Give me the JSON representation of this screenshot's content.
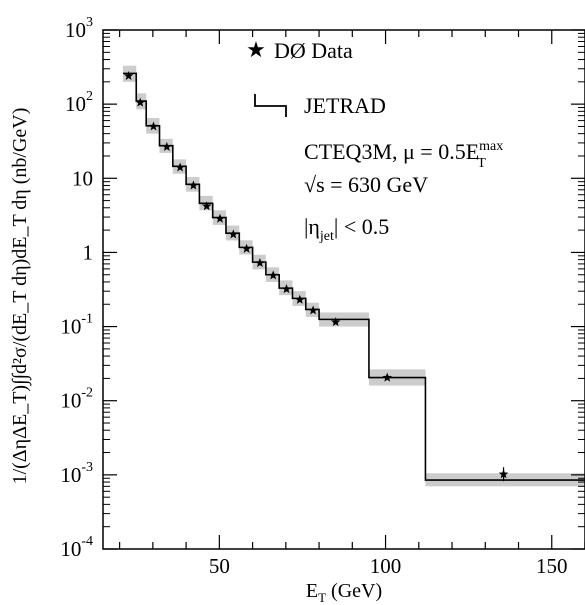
{
  "chart_data": {
    "type": "step-line-with-points",
    "xlabel": "E_T (GeV)",
    "ylabel": "1/(ΔηΔE_T)∫∫d²σ/(dE_T dη)dE_T dη (nb/GeV)",
    "xlim": [
      15,
      160
    ],
    "ylim": [
      0.0001,
      1000
    ],
    "yscale": "log",
    "xticks": [
      50,
      100,
      150
    ],
    "yticks": [
      {
        "value": 1000,
        "label": "10",
        "exp": "3"
      },
      {
        "value": 100,
        "label": "10",
        "exp": "2"
      },
      {
        "value": 10,
        "label": "10",
        "exp": ""
      },
      {
        "value": 1,
        "label": "1",
        "exp": ""
      },
      {
        "value": 0.1,
        "label": "10",
        "exp": "-1"
      },
      {
        "value": 0.01,
        "label": "10",
        "exp": "-2"
      },
      {
        "value": 0.001,
        "label": "10",
        "exp": "-3"
      },
      {
        "value": 0.0001,
        "label": "10",
        "exp": "-4"
      }
    ],
    "data_points": {
      "name": "DØ Data",
      "marker": "star",
      "x": [
        22.7,
        26.2,
        30.2,
        34.2,
        38.2,
        42.2,
        46.2,
        50.2,
        54.2,
        58.2,
        62.2,
        66.2,
        70.2,
        74.2,
        78.2,
        85.0,
        100.5,
        135.5
      ],
      "y": [
        240,
        105,
        50,
        26.5,
        14.0,
        8.0,
        4.2,
        2.85,
        1.75,
        1.12,
        0.72,
        0.49,
        0.32,
        0.23,
        0.165,
        0.115,
        0.0205,
        0.00102
      ]
    },
    "model": {
      "name": "JETRAD",
      "edges": [
        21,
        25,
        28,
        32,
        36,
        40,
        44,
        48,
        52,
        56,
        60,
        64,
        68,
        72,
        76,
        80,
        95,
        112,
        160
      ],
      "values": [
        260,
        110,
        51,
        27.5,
        14.5,
        8.3,
        4.6,
        2.95,
        1.82,
        1.17,
        0.74,
        0.5,
        0.33,
        0.24,
        0.17,
        0.125,
        0.0205,
        0.00085
      ],
      "band_low": [
        200,
        85,
        40,
        22,
        11.5,
        6.6,
        3.7,
        2.35,
        1.45,
        0.94,
        0.59,
        0.4,
        0.265,
        0.19,
        0.135,
        0.1,
        0.016,
        0.0007
      ],
      "band_high": [
        330,
        140,
        65,
        34,
        18,
        10.4,
        5.8,
        3.7,
        2.3,
        1.46,
        0.93,
        0.63,
        0.42,
        0.3,
        0.21,
        0.155,
        0.0265,
        0.00105
      ]
    },
    "legend": {
      "data_label": "DØ Data",
      "model_label": "JETRAD",
      "pdf_prefix": "CTEQ3M, μ = 0.5E",
      "pdf_sup": "max",
      "pdf_sub": "T",
      "energy_label": "s = 630 GeV",
      "sqrt_symbol": "√",
      "eta_pre": "|η",
      "eta_sub": "jet",
      "eta_post": "| < 0.5"
    },
    "colors": {
      "band": "#cccccc",
      "line": "#000000",
      "marker": "#000000"
    }
  }
}
